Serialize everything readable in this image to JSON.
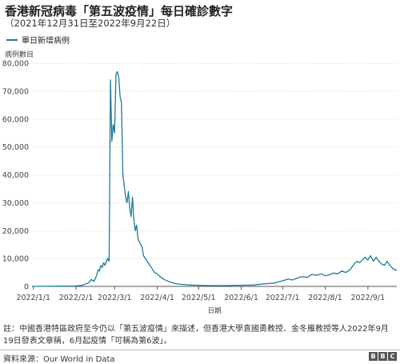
{
  "chart_data": {
    "type": "line",
    "title": "香港新冠病毒「第五波疫情」每日確診數字",
    "subtitle": "（2021年12月31日至2022年9月22日）",
    "ylabel": "病例數目",
    "xlabel": "日期",
    "ylim": [
      0,
      80000
    ],
    "yticks": [
      "0",
      "10,000",
      "20,000",
      "30,000",
      "40,000",
      "50,000",
      "60,000",
      "70,000",
      "80,000"
    ],
    "xticks": [
      "2022/1/1",
      "2022/2/1",
      "2022/3/1",
      "2022/4/1",
      "2022/5/1",
      "2022/6/1",
      "2022/7/1",
      "2022/8/1",
      "2022/9/1"
    ],
    "grid": "horizontal",
    "legend_position": "top-left",
    "series": [
      {
        "name": "單日新增病例",
        "color": "#1f7a99",
        "points": [
          [
            "2021-12-31",
            0
          ],
          [
            "2022-01-10",
            20
          ],
          [
            "2022-01-20",
            100
          ],
          [
            "2022-01-31",
            150
          ],
          [
            "2022-02-05",
            350
          ],
          [
            "2022-02-08",
            900
          ],
          [
            "2022-02-10",
            1200
          ],
          [
            "2022-02-12",
            2500
          ],
          [
            "2022-02-14",
            1800
          ],
          [
            "2022-02-16",
            4000
          ],
          [
            "2022-02-17",
            6000
          ],
          [
            "2022-02-18",
            5500
          ],
          [
            "2022-02-19",
            7500
          ],
          [
            "2022-02-20",
            6800
          ],
          [
            "2022-02-21",
            8500
          ],
          [
            "2022-02-22",
            7500
          ],
          [
            "2022-02-23",
            9000
          ],
          [
            "2022-02-24",
            10000
          ],
          [
            "2022-02-25",
            9000
          ],
          [
            "2022-02-26",
            74000
          ],
          [
            "2022-02-27",
            52000
          ],
          [
            "2022-02-28",
            58000
          ],
          [
            "2022-03-01",
            55000
          ],
          [
            "2022-03-02",
            76000
          ],
          [
            "2022-03-03",
            77000
          ],
          [
            "2022-03-04",
            75000
          ],
          [
            "2022-03-05",
            68000
          ],
          [
            "2022-03-06",
            66000
          ],
          [
            "2022-03-07",
            40000
          ],
          [
            "2022-03-08",
            36000
          ],
          [
            "2022-03-09",
            32000
          ],
          [
            "2022-03-10",
            30000
          ],
          [
            "2022-03-11",
            34000
          ],
          [
            "2022-03-12",
            28000
          ],
          [
            "2022-03-13",
            25000
          ],
          [
            "2022-03-14",
            32000
          ],
          [
            "2022-03-15",
            24000
          ],
          [
            "2022-03-16",
            20000
          ],
          [
            "2022-03-17",
            22000
          ],
          [
            "2022-03-18",
            17000
          ],
          [
            "2022-03-19",
            16000
          ],
          [
            "2022-03-20",
            15000
          ],
          [
            "2022-03-21",
            14000
          ],
          [
            "2022-03-22",
            11000
          ],
          [
            "2022-03-24",
            9500
          ],
          [
            "2022-03-26",
            8000
          ],
          [
            "2022-03-28",
            6500
          ],
          [
            "2022-03-30",
            5000
          ],
          [
            "2022-04-01",
            4500
          ],
          [
            "2022-04-03",
            3500
          ],
          [
            "2022-04-06",
            2500
          ],
          [
            "2022-04-10",
            1600
          ],
          [
            "2022-04-15",
            900
          ],
          [
            "2022-04-20",
            700
          ],
          [
            "2022-04-25",
            500
          ],
          [
            "2022-05-01",
            400
          ],
          [
            "2022-05-10",
            300
          ],
          [
            "2022-05-20",
            300
          ],
          [
            "2022-05-31",
            400
          ],
          [
            "2022-06-10",
            500
          ],
          [
            "2022-06-15",
            800
          ],
          [
            "2022-06-20",
            1000
          ],
          [
            "2022-06-25",
            1200
          ],
          [
            "2022-07-01",
            2000
          ],
          [
            "2022-07-05",
            2600
          ],
          [
            "2022-07-08",
            2300
          ],
          [
            "2022-07-12",
            3000
          ],
          [
            "2022-07-15",
            3500
          ],
          [
            "2022-07-19",
            3200
          ],
          [
            "2022-07-22",
            4300
          ],
          [
            "2022-07-26",
            4000
          ],
          [
            "2022-07-29",
            4500
          ],
          [
            "2022-08-01",
            3800
          ],
          [
            "2022-08-04",
            4200
          ],
          [
            "2022-08-07",
            4800
          ],
          [
            "2022-08-10",
            4500
          ],
          [
            "2022-08-13",
            5500
          ],
          [
            "2022-08-16",
            5000
          ],
          [
            "2022-08-19",
            6000
          ],
          [
            "2022-08-22",
            8000
          ],
          [
            "2022-08-24",
            9000
          ],
          [
            "2022-08-26",
            8500
          ],
          [
            "2022-08-28",
            9500
          ],
          [
            "2022-08-30",
            10500
          ],
          [
            "2022-09-01",
            9500
          ],
          [
            "2022-09-03",
            11000
          ],
          [
            "2022-09-05",
            9000
          ],
          [
            "2022-09-07",
            10500
          ],
          [
            "2022-09-09",
            9000
          ],
          [
            "2022-09-11",
            8000
          ],
          [
            "2022-09-13",
            7500
          ],
          [
            "2022-09-15",
            9000
          ],
          [
            "2022-09-17",
            7500
          ],
          [
            "2022-09-19",
            6500
          ],
          [
            "2022-09-21",
            5800
          ],
          [
            "2022-09-22",
            6000
          ]
        ]
      }
    ]
  },
  "note": "註：中國香港特區政府至今仍以「第五波疫情」來描述，但香港大學袁國勇教授、金冬雁教授等人2022年9月19日發表文章稱，6月起疫情「可稱為第6波」。",
  "source": "資料來源：Our World in Data",
  "logo": [
    "B",
    "B",
    "C"
  ]
}
